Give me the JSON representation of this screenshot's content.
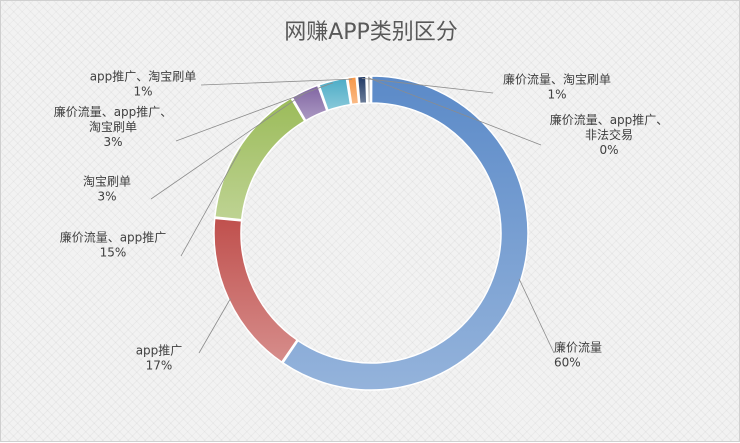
{
  "chart_data": {
    "type": "pie",
    "subtype": "doughnut",
    "title": "网赚APP类别区分",
    "legend": "none",
    "slices": [
      {
        "name": "廉价流量",
        "value": 60,
        "value_label": "60%",
        "color": "#5b8ac8"
      },
      {
        "name": "app推广",
        "value": 17,
        "value_label": "17%",
        "color": "#c0504d"
      },
      {
        "name": "廉价流量、app推广",
        "value": 15,
        "value_label": "15%",
        "color": "#9bbb59"
      },
      {
        "name": "淘宝刷单",
        "value": 3,
        "value_label": "3%",
        "color": "#8064a2"
      },
      {
        "name": "廉价流量、app推广、淘宝刷单",
        "value": 3,
        "value_label": "3%",
        "color": "#4bacc6"
      },
      {
        "name": "app推广、淘宝刷单",
        "value": 1,
        "value_label": "1%",
        "color": "#f79646"
      },
      {
        "name": "廉价流量、淘宝刷单",
        "value": 1,
        "value_label": "1%",
        "color": "#1f3864"
      },
      {
        "name": "廉价流量、app推广、非法交易",
        "value": 0,
        "value_label": "0%",
        "color": "#a5a5a5"
      }
    ]
  }
}
